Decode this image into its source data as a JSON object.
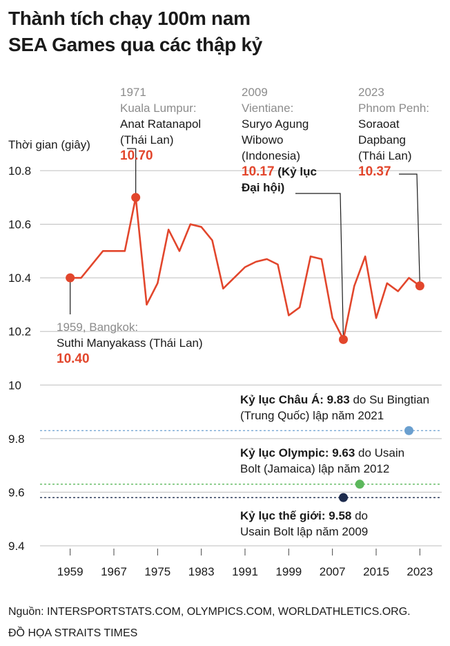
{
  "title": {
    "line1": "Thành tích chạy 100m nam",
    "line2": "SEA Games qua các thập kỷ"
  },
  "chart_data": {
    "type": "line",
    "ylabel": "Thời gian (giây)",
    "ylim": [
      9.4,
      10.8
    ],
    "yticks": [
      9.4,
      9.6,
      9.8,
      10,
      10.2,
      10.4,
      10.6,
      10.8
    ],
    "ytick_labels": [
      "9.4",
      "9.6",
      "9.8",
      "10",
      "10.2",
      "10.4",
      "10.6",
      "10.8"
    ],
    "xlim": [
      1955,
      2027
    ],
    "xticks": [
      1959,
      1967,
      1975,
      1983,
      1991,
      1999,
      2007,
      2015,
      2023
    ],
    "xtick_labels": [
      "1959",
      "1967",
      "1975",
      "1983",
      "1991",
      "1999",
      "2007",
      "2015",
      "2023"
    ],
    "line_color": "#e2462c",
    "series": [
      {
        "name": "SEA Games 100m nam",
        "x": [
          1959,
          1961,
          1965,
          1969,
          1971,
          1973,
          1975,
          1977,
          1979,
          1981,
          1983,
          1985,
          1987,
          1989,
          1991,
          1993,
          1995,
          1997,
          1999,
          2001,
          2003,
          2005,
          2007,
          2009,
          2011,
          2013,
          2015,
          2017,
          2019,
          2021,
          2023
        ],
        "y": [
          10.4,
          10.4,
          10.5,
          10.5,
          10.7,
          10.3,
          10.38,
          10.58,
          10.5,
          10.6,
          10.59,
          10.54,
          10.36,
          10.4,
          10.44,
          10.46,
          10.47,
          10.45,
          10.26,
          10.29,
          10.48,
          10.47,
          10.25,
          10.17,
          10.37,
          10.48,
          10.25,
          10.38,
          10.35,
          10.4,
          10.37
        ]
      }
    ],
    "highlights": [
      {
        "year": 1959,
        "value": 10.4,
        "label_year": "1959, Bangkok:",
        "athlete": "Suthi Manyakass (Thái Lan)",
        "value_text": "10.40"
      },
      {
        "year": 1971,
        "value": 10.7,
        "label_year": "1971",
        "place": "Kuala Lumpur:",
        "athlete_l1": "Anat Ratanapol",
        "athlete_l2": "(Thái Lan)",
        "value_text": "10.70"
      },
      {
        "year": 2009,
        "value": 10.17,
        "label_year": "2009",
        "place": "Vientiane:",
        "athlete_l1": "Suryo Agung",
        "athlete_l2": "Wibowo",
        "athlete_l3": "(Indonesia)",
        "value_text": "10.17",
        "note_l1": "(Kỷ lục",
        "note_l2": "Đại hội)"
      },
      {
        "year": 2023,
        "value": 10.37,
        "label_year": "2023",
        "place": "Phnom Penh:",
        "athlete_l1": "Soraoat",
        "athlete_l2": "Dapbang",
        "athlete_l3": "(Thái Lan)",
        "value_text": "10.37"
      }
    ],
    "reference_lines": [
      {
        "name": "Kỷ lục Châu Á",
        "value": 9.83,
        "year": 2021,
        "color": "#6a9fcf",
        "label_bold": "Kỷ lục Châu Á: 9.83",
        "label_rest": " do Su Bingtian",
        "label_l2": "(Trung Quốc) lập năm 2021"
      },
      {
        "name": "Kỷ lục Olympic",
        "value": 9.63,
        "year": 2012,
        "color": "#5cb85c",
        "label_bold": "Kỷ lục Olympic: 9.63",
        "label_rest": " do Usain",
        "label_l2": "Bolt (Jamaica) lập năm 2012"
      },
      {
        "name": "Kỷ lục thế giới",
        "value": 9.58,
        "year": 2009,
        "color": "#1d2b4d",
        "label_bold": "Kỷ lục thế giới: 9.58",
        "label_rest": " do",
        "label_l2": "Usain Bolt lập năm 2009"
      }
    ]
  },
  "source": {
    "line1": "Nguồn: INTERSPORTSTATS.COM, OLYMPICS.COM, WORLDATHLETICS.ORG.",
    "line2": "ĐỒ HỌA STRAITS TIMES"
  }
}
